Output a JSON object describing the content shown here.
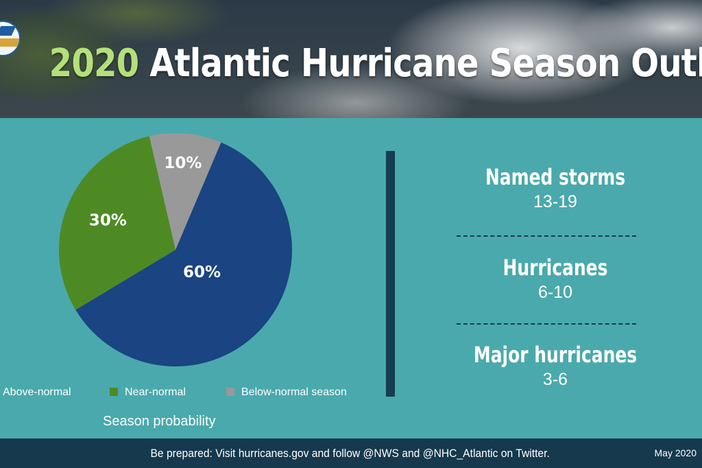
{
  "header": {
    "title_year": "2020",
    "title_rest": "Atlantic Hurricane Season Outlook"
  },
  "chart_data": {
    "type": "pie",
    "title": "",
    "categories": [
      "Above-normal",
      "Near-normal",
      "Below-normal season"
    ],
    "values": [
      60,
      30,
      10
    ],
    "labels": [
      "60%",
      "30%",
      "10%"
    ],
    "colors": [
      "#1a4482",
      "#4e8a24",
      "#999999"
    ],
    "legend_placement": "bottom",
    "footnote": "Season probability"
  },
  "stats": [
    {
      "label": "Named storms",
      "value": "13-19"
    },
    {
      "label": "Hurricanes",
      "value": "6-10"
    },
    {
      "label": "Major hurricanes",
      "value": "3-6"
    }
  ],
  "footer": {
    "text": "Be prepared: Visit hurricanes.gov and follow @NWS and @NHC_Atlantic on Twitter.",
    "date": "May 2020"
  },
  "colors": {
    "background": "#4aa9ac",
    "footer": "#16394d",
    "divider": "#163d52",
    "title_accent": "#b4e07a"
  },
  "icons": {
    "logo": "noaa-logo-icon"
  }
}
